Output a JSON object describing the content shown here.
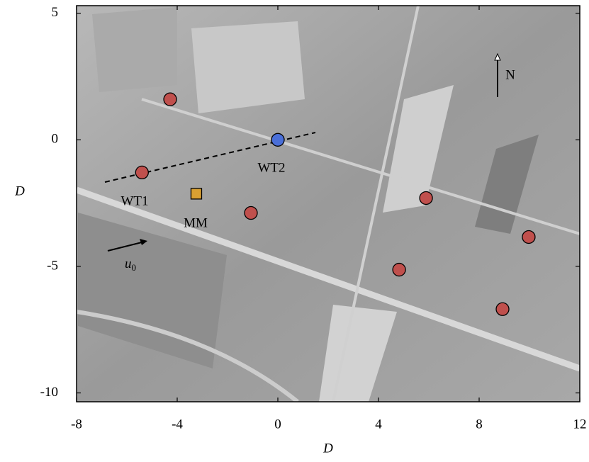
{
  "chart_data": {
    "type": "scatter",
    "xlabel": "D",
    "ylabel": "D",
    "xlim": [
      -8,
      12
    ],
    "ylim": [
      -10.35,
      5.3
    ],
    "xticks": [
      -8,
      -4,
      0,
      4,
      8,
      12
    ],
    "yticks": [
      5,
      0,
      -5,
      -10
    ],
    "series": [
      {
        "color": "#c0504d",
        "marker": "circle",
        "x": [
          -4.28,
          -5.4,
          -1.07,
          5.89,
          9.97,
          4.82,
          8.93
        ],
        "values": [
          1.6,
          -1.29,
          -2.89,
          -2.3,
          -3.84,
          -5.13,
          -6.69
        ]
      },
      {
        "color": "#4a6fd8",
        "marker": "circle",
        "x": [
          0
        ],
        "values": [
          0
        ]
      },
      {
        "color": "#d9a032",
        "marker": "square",
        "x": [
          -3.24
        ],
        "values": [
          -2.13
        ]
      }
    ],
    "annotations": [
      "WT1",
      "WT2",
      "MM",
      "N"
    ],
    "u_label": {
      "base": "u",
      "sub": "0"
    }
  }
}
